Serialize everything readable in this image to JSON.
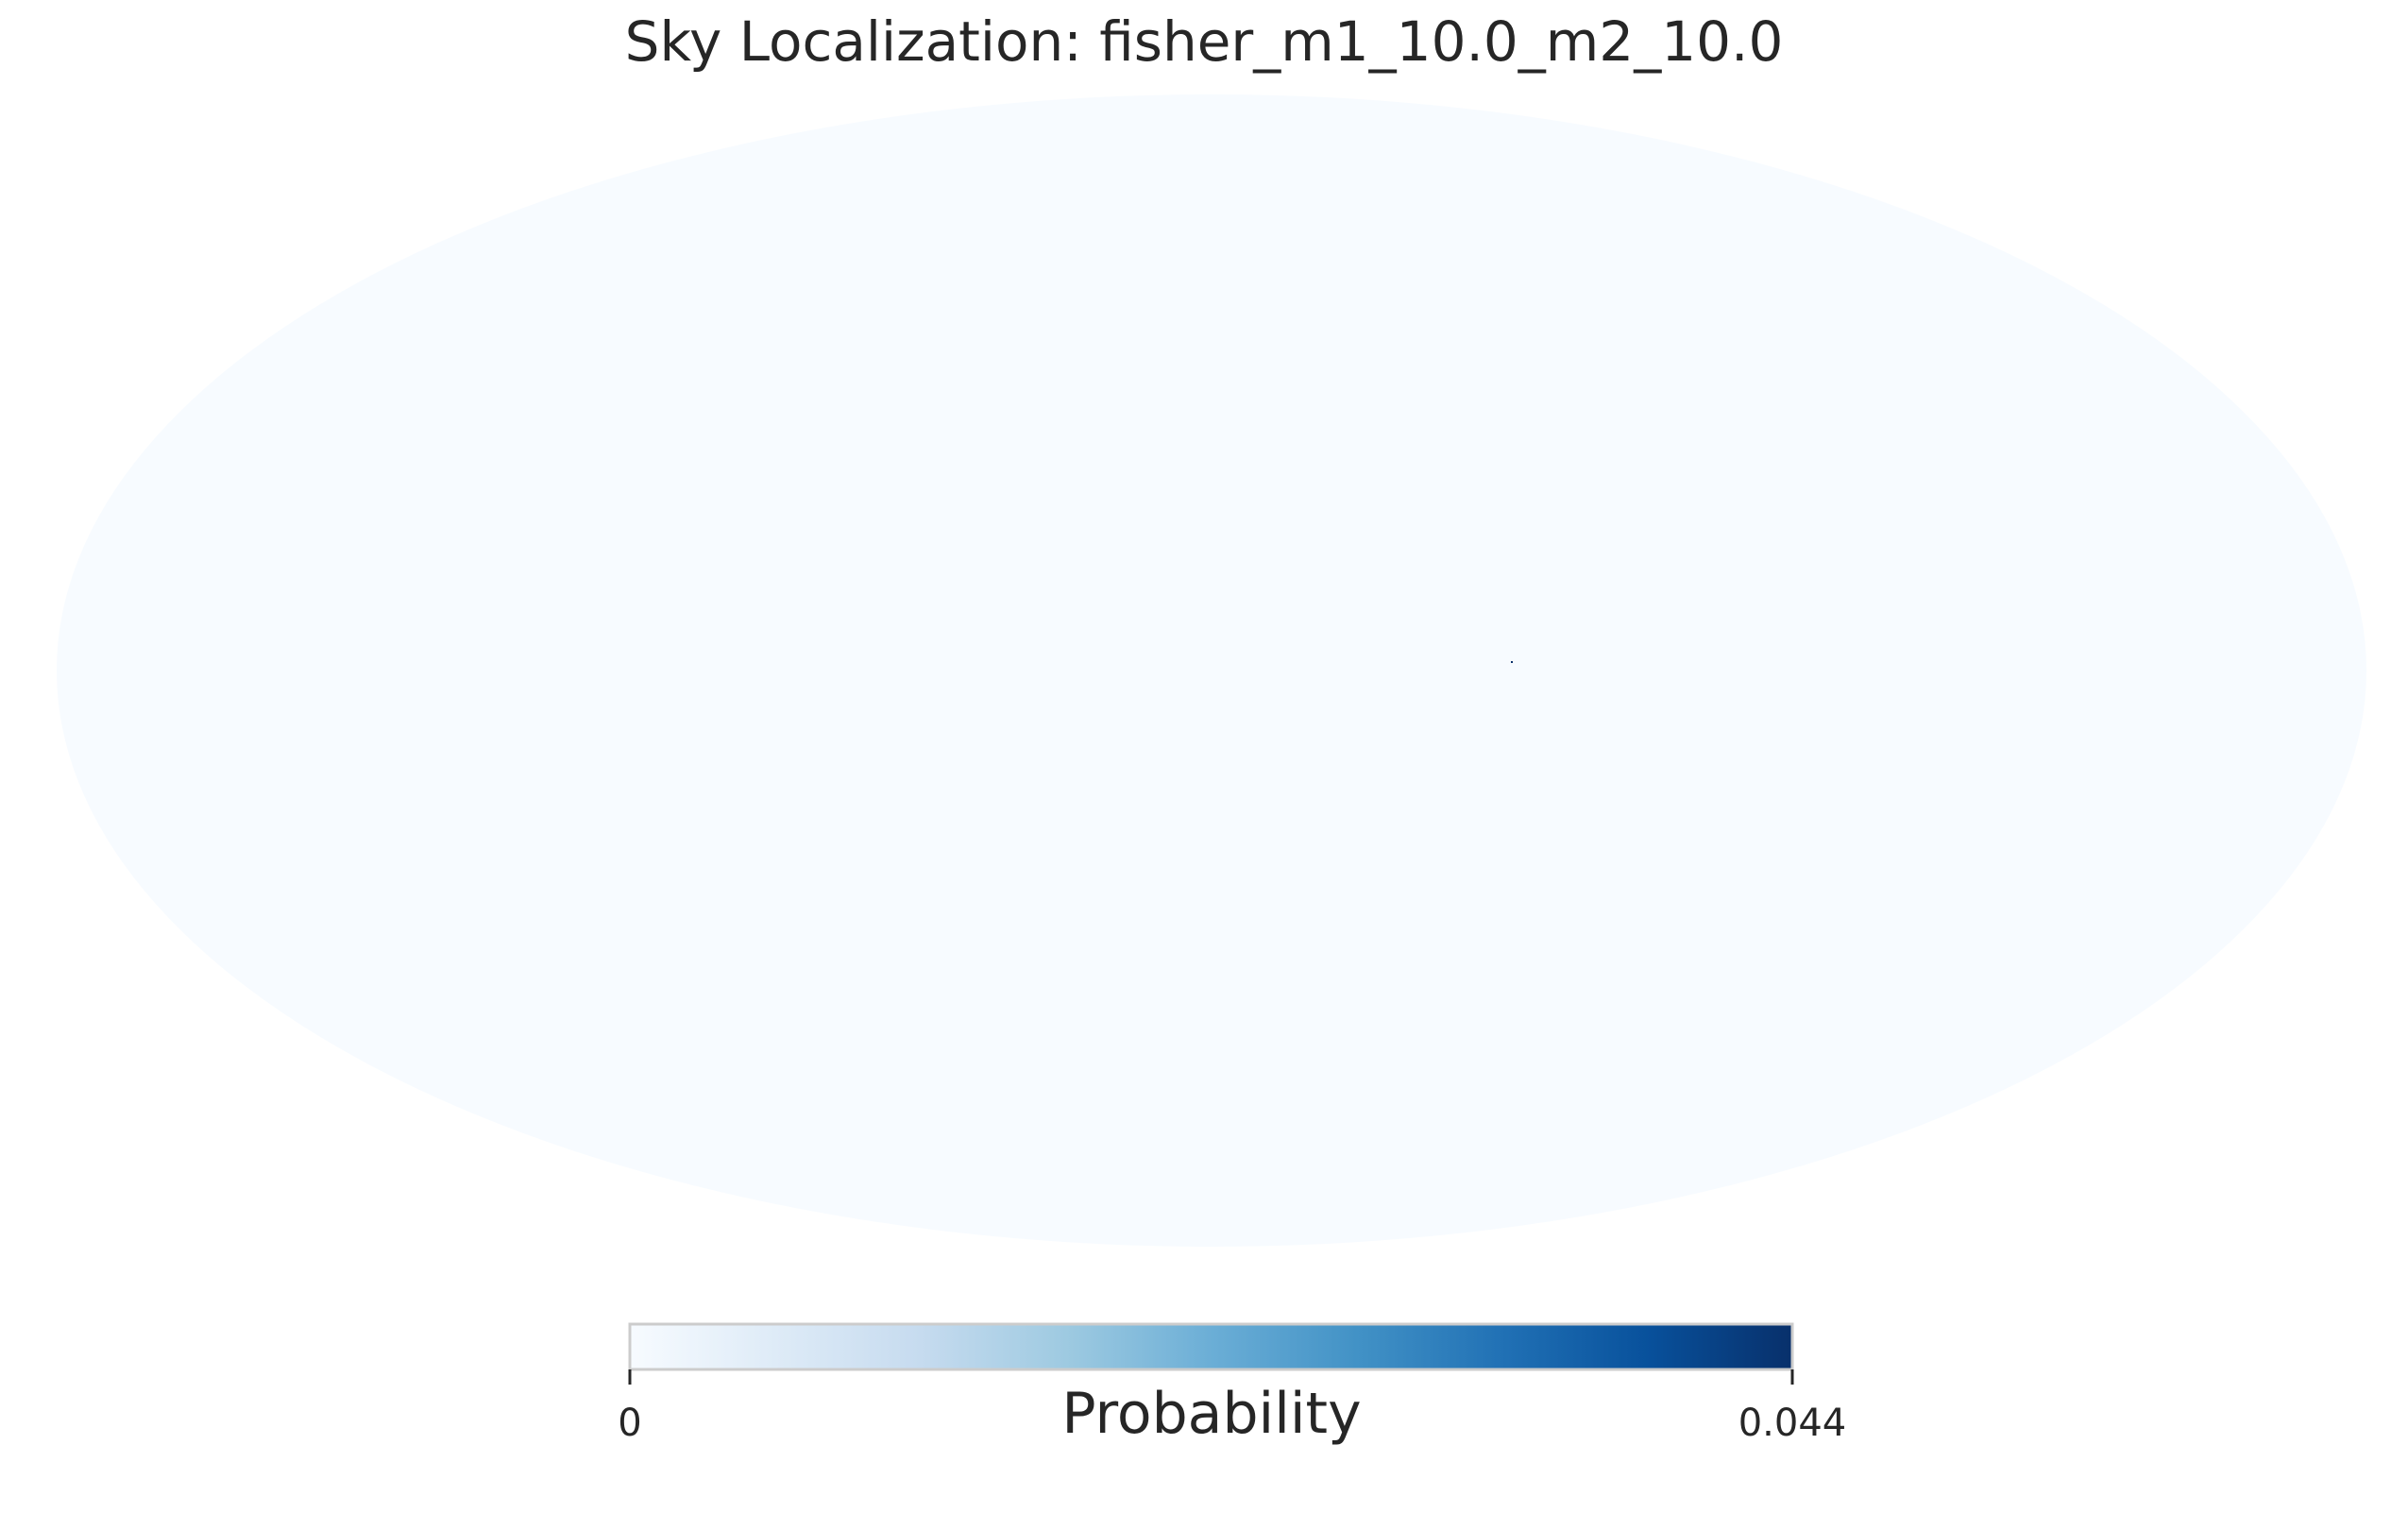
{
  "chart_data": {
    "type": "heatmap",
    "projection": "mollweide",
    "title": "Sky Localization: fisher_m1_10.0_m2_10.0",
    "colormap": "Blues",
    "colormap_stops": [
      "#f7fbff",
      "#deebf7",
      "#c6dbef",
      "#9ecae1",
      "#6baed6",
      "#4292c6",
      "#2171b5",
      "#08519c",
      "#08306b"
    ],
    "background_value": 0,
    "peak": {
      "value": 0.044
    },
    "colorbar": {
      "label": "Probability",
      "range": [
        0,
        0.044
      ],
      "ticks": [
        "0",
        "0.044"
      ],
      "position": "bottom"
    },
    "grid": false
  }
}
